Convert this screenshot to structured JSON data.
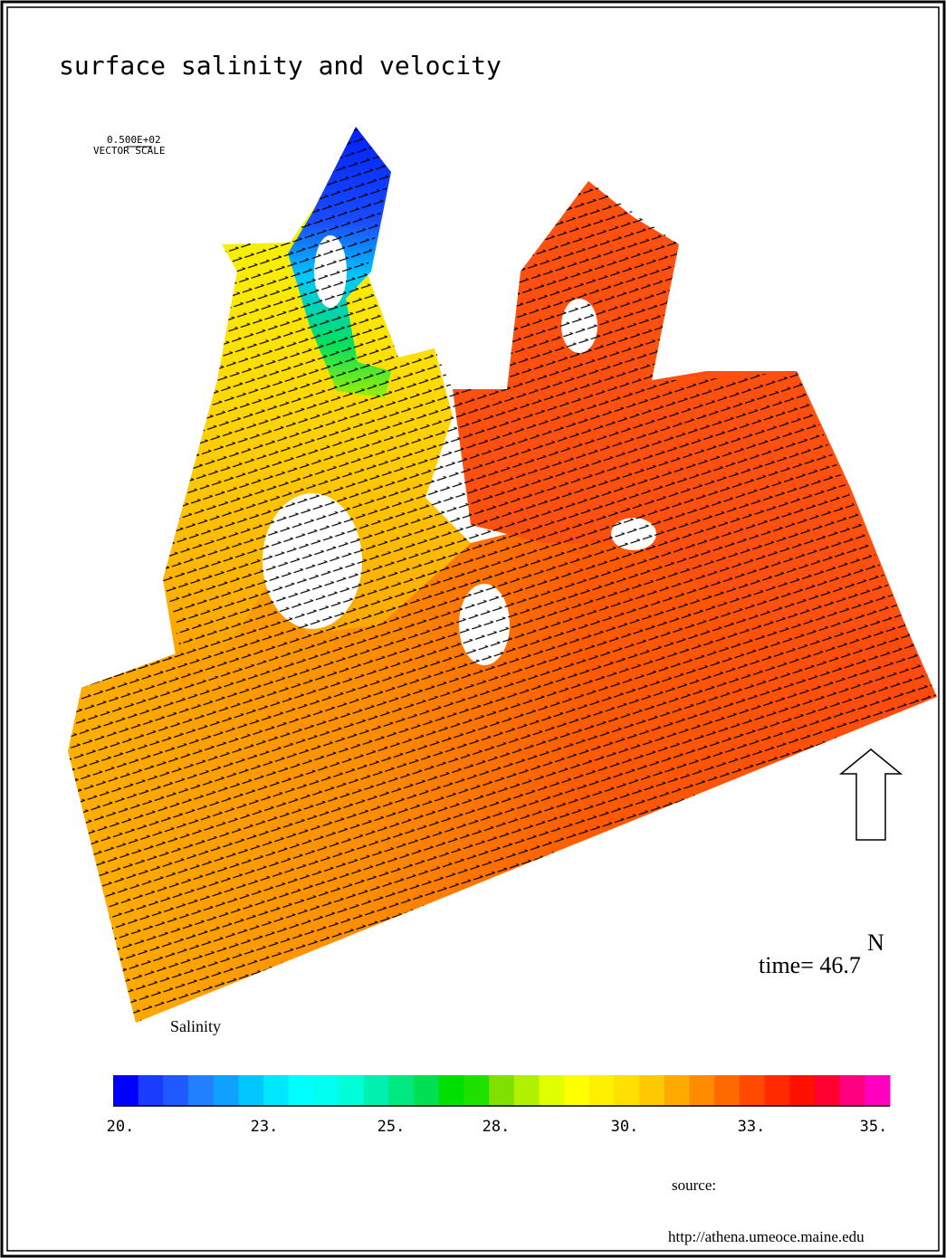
{
  "title": "surface salinity and velocity",
  "vector_scale": {
    "value": "0.500E+02",
    "label": "VECTOR SCALE"
  },
  "compass": "N",
  "time_label": "time= 46.7",
  "colorbar": {
    "title": "Salinity",
    "colors": [
      "#0000ff",
      "#1a3cff",
      "#1e5aff",
      "#2080ff",
      "#10a0ff",
      "#00c8ff",
      "#00e8ff",
      "#00ffff",
      "#00fff0",
      "#00ffd8",
      "#00f0b0",
      "#00e880",
      "#00e050",
      "#00e000",
      "#20e000",
      "#80e000",
      "#b0f000",
      "#e0ff00",
      "#ffff00",
      "#fff000",
      "#ffe000",
      "#ffc800",
      "#ffaa00",
      "#ff8c00",
      "#ff6a00",
      "#ff4a00",
      "#ff2a00",
      "#ff1000",
      "#ff0030",
      "#ff0080",
      "#ff00c0"
    ],
    "tick_labels": [
      "20.",
      "23.",
      "25.",
      "28.",
      "30.",
      "33.",
      "35."
    ]
  },
  "source": {
    "label": "source:",
    "url": "http://athena.umeoce.maine.edu"
  }
}
